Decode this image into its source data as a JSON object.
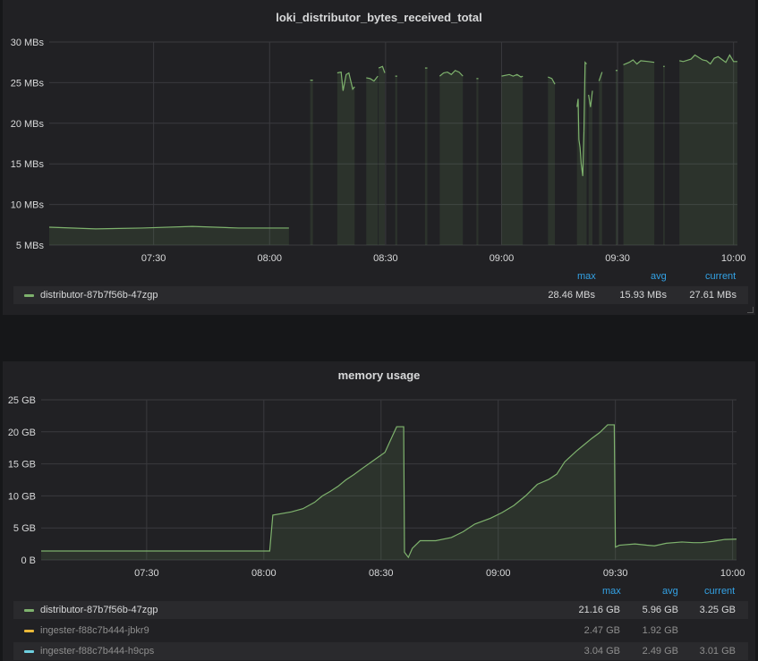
{
  "panels": [
    {
      "title": "loki_distributor_bytes_received_total",
      "legend_headers": {
        "max": "max",
        "avg": "avg",
        "current": "current"
      },
      "legend": [
        {
          "name": "distributor-87b7f56b-47zgp",
          "color": "#7eb26d",
          "max": "28.46 MBs",
          "avg": "15.93 MBs",
          "current": "27.61 MBs"
        }
      ]
    },
    {
      "title": "memory usage",
      "legend_headers": {
        "max": "max",
        "avg": "avg",
        "current": "current"
      },
      "legend": [
        {
          "name": "distributor-87b7f56b-47zgp",
          "color": "#7eb26d",
          "max": "21.16 GB",
          "avg": "5.96 GB",
          "current": "3.25 GB"
        },
        {
          "name": "ingester-f88c7b444-jbkr9",
          "color": "#eab839",
          "max": "2.47 GB",
          "avg": "1.92 GB",
          "current": ""
        },
        {
          "name": "ingester-f88c7b444-h9cps",
          "color": "#6ed0e0",
          "max": "3.04 GB",
          "avg": "2.49 GB",
          "current": "3.01 GB"
        }
      ]
    }
  ],
  "chart_data": [
    {
      "type": "area",
      "title": "loki_distributor_bytes_received_total",
      "xlabel": "",
      "ylabel": "",
      "y_tick_labels": [
        "5 MBs",
        "10 MBs",
        "15 MBs",
        "20 MBs",
        "25 MBs",
        "30 MBs"
      ],
      "x_tick_labels": [
        "07:30",
        "08:00",
        "08:30",
        "09:00",
        "09:30",
        "10:00"
      ],
      "x_ticks_min": [
        450,
        480,
        510,
        540,
        570,
        600
      ],
      "xlim": [
        423,
        601
      ],
      "ylim": [
        5,
        30
      ],
      "grid": true,
      "series": [
        {
          "name": "distributor-87b7f56b-47zgp",
          "color": "#7eb26d",
          "segments": [
            {
              "x": [
                423,
                435,
                447,
                460,
                472,
                485
              ],
              "y": [
                7.2,
                7.0,
                7.1,
                7.3,
                7.1,
                7.1
              ]
            },
            {
              "x": [
                490.5,
                491.2
              ],
              "y": [
                25.3,
                25.3
              ]
            },
            {
              "x": [
                497.5,
                498.5,
                499,
                499.8,
                500.5,
                501.5,
                502
              ],
              "y": [
                26.2,
                26.3,
                24.0,
                26.0,
                26.2,
                24.2,
                24.5
              ]
            },
            {
              "x": [
                505,
                506,
                507,
                508
              ],
              "y": [
                25.6,
                25.5,
                25.2,
                25.8
              ]
            },
            {
              "x": [
                508.2,
                509.2,
                509.8
              ],
              "y": [
                26.8,
                27.0,
                26.2
              ]
            },
            {
              "x": [
                512.5,
                513
              ],
              "y": [
                25.8,
                25.8
              ]
            },
            {
              "x": [
                520.2,
                520.8
              ],
              "y": [
                26.8,
                26.8
              ]
            },
            {
              "x": [
                524,
                525,
                526,
                527,
                528,
                529,
                530
              ],
              "y": [
                25.8,
                26.2,
                26.3,
                26.0,
                26.5,
                26.3,
                25.8
              ]
            },
            {
              "x": [
                533.5,
                534
              ],
              "y": [
                25.5,
                25.5
              ]
            },
            {
              "x": [
                540,
                542,
                543,
                544,
                545,
                545.5
              ],
              "y": [
                25.8,
                26.0,
                25.8,
                26.0,
                25.7,
                25.8
              ]
            },
            {
              "x": [
                552,
                553,
                553.8
              ],
              "y": [
                25.7,
                25.5,
                24.8
              ]
            },
            {
              "x": [
                559.5,
                559.8,
                560,
                560.3,
                560.6,
                561,
                561.3
              ],
              "y": [
                22.0,
                23.0,
                18.0,
                17.0,
                15.0,
                13.5,
                19.0
              ]
            },
            {
              "x": [
                561.3,
                561.6,
                562
              ],
              "y": [
                19.0,
                27.5,
                27.3
              ]
            },
            {
              "x": [
                562.5,
                563,
                563.5
              ],
              "y": [
                23.5,
                22.0,
                24.0
              ]
            },
            {
              "x": [
                565.2,
                566
              ],
              "y": [
                25.2,
                26.3
              ]
            },
            {
              "x": [
                569.5,
                570
              ],
              "y": [
                26.5,
                26.5
              ]
            },
            {
              "x": [
                571.5,
                573,
                574,
                575,
                576,
                578,
                579.5
              ],
              "y": [
                27.2,
                27.5,
                27.8,
                27.3,
                27.7,
                27.6,
                27.5
              ]
            },
            {
              "x": [
                581.8,
                582.2
              ],
              "y": [
                27.0,
                27.0
              ]
            },
            {
              "x": [
                586,
                587,
                589,
                590,
                592,
                593,
                594,
                595,
                596,
                598,
                599,
                600,
                601
              ],
              "y": [
                27.7,
                27.6,
                27.9,
                28.4,
                27.8,
                27.7,
                27.3,
                28.0,
                28.2,
                27.5,
                28.4,
                27.6,
                27.6
              ]
            }
          ]
        }
      ]
    },
    {
      "type": "area",
      "title": "memory usage",
      "xlabel": "",
      "ylabel": "",
      "y_tick_labels": [
        "0 B",
        "5 GB",
        "10 GB",
        "15 GB",
        "20 GB",
        "25 GB"
      ],
      "x_tick_labels": [
        "07:30",
        "08:00",
        "08:30",
        "09:00",
        "09:30",
        "10:00"
      ],
      "x_ticks_min": [
        450,
        480,
        510,
        540,
        570,
        600
      ],
      "xlim": [
        423,
        601
      ],
      "ylim": [
        0,
        25
      ],
      "grid": true,
      "series": [
        {
          "name": "distributor-87b7f56b-47zgp",
          "color": "#7eb26d",
          "x": [
            423,
            428,
            436,
            444,
            452,
            460,
            468,
            476,
            481.5,
            482.3,
            487,
            490,
            493,
            495,
            497,
            499,
            501,
            503,
            505,
            508,
            511,
            514,
            515.8,
            516,
            517,
            518,
            520,
            524,
            528,
            531,
            534,
            538,
            541,
            544,
            547,
            550,
            553,
            555,
            557,
            560,
            562,
            564,
            566,
            568,
            569.7,
            570,
            571,
            575,
            578,
            580,
            583,
            587,
            590,
            592,
            595,
            598,
            601
          ],
          "y": [
            1.4,
            1.4,
            1.4,
            1.4,
            1.4,
            1.4,
            1.4,
            1.4,
            1.4,
            7.0,
            7.5,
            8.0,
            9.0,
            10.0,
            10.7,
            11.5,
            12.5,
            13.3,
            14.2,
            15.5,
            16.8,
            20.8,
            20.8,
            1.2,
            0.4,
            1.8,
            3.0,
            3.0,
            3.5,
            4.4,
            5.6,
            6.5,
            7.4,
            8.5,
            10.0,
            11.8,
            12.6,
            13.4,
            15.3,
            17.0,
            18.0,
            19.0,
            19.9,
            21.1,
            21.1,
            2.0,
            2.3,
            2.5,
            2.3,
            2.2,
            2.6,
            2.8,
            2.7,
            2.7,
            2.9,
            3.2,
            3.25
          ]
        }
      ]
    }
  ]
}
